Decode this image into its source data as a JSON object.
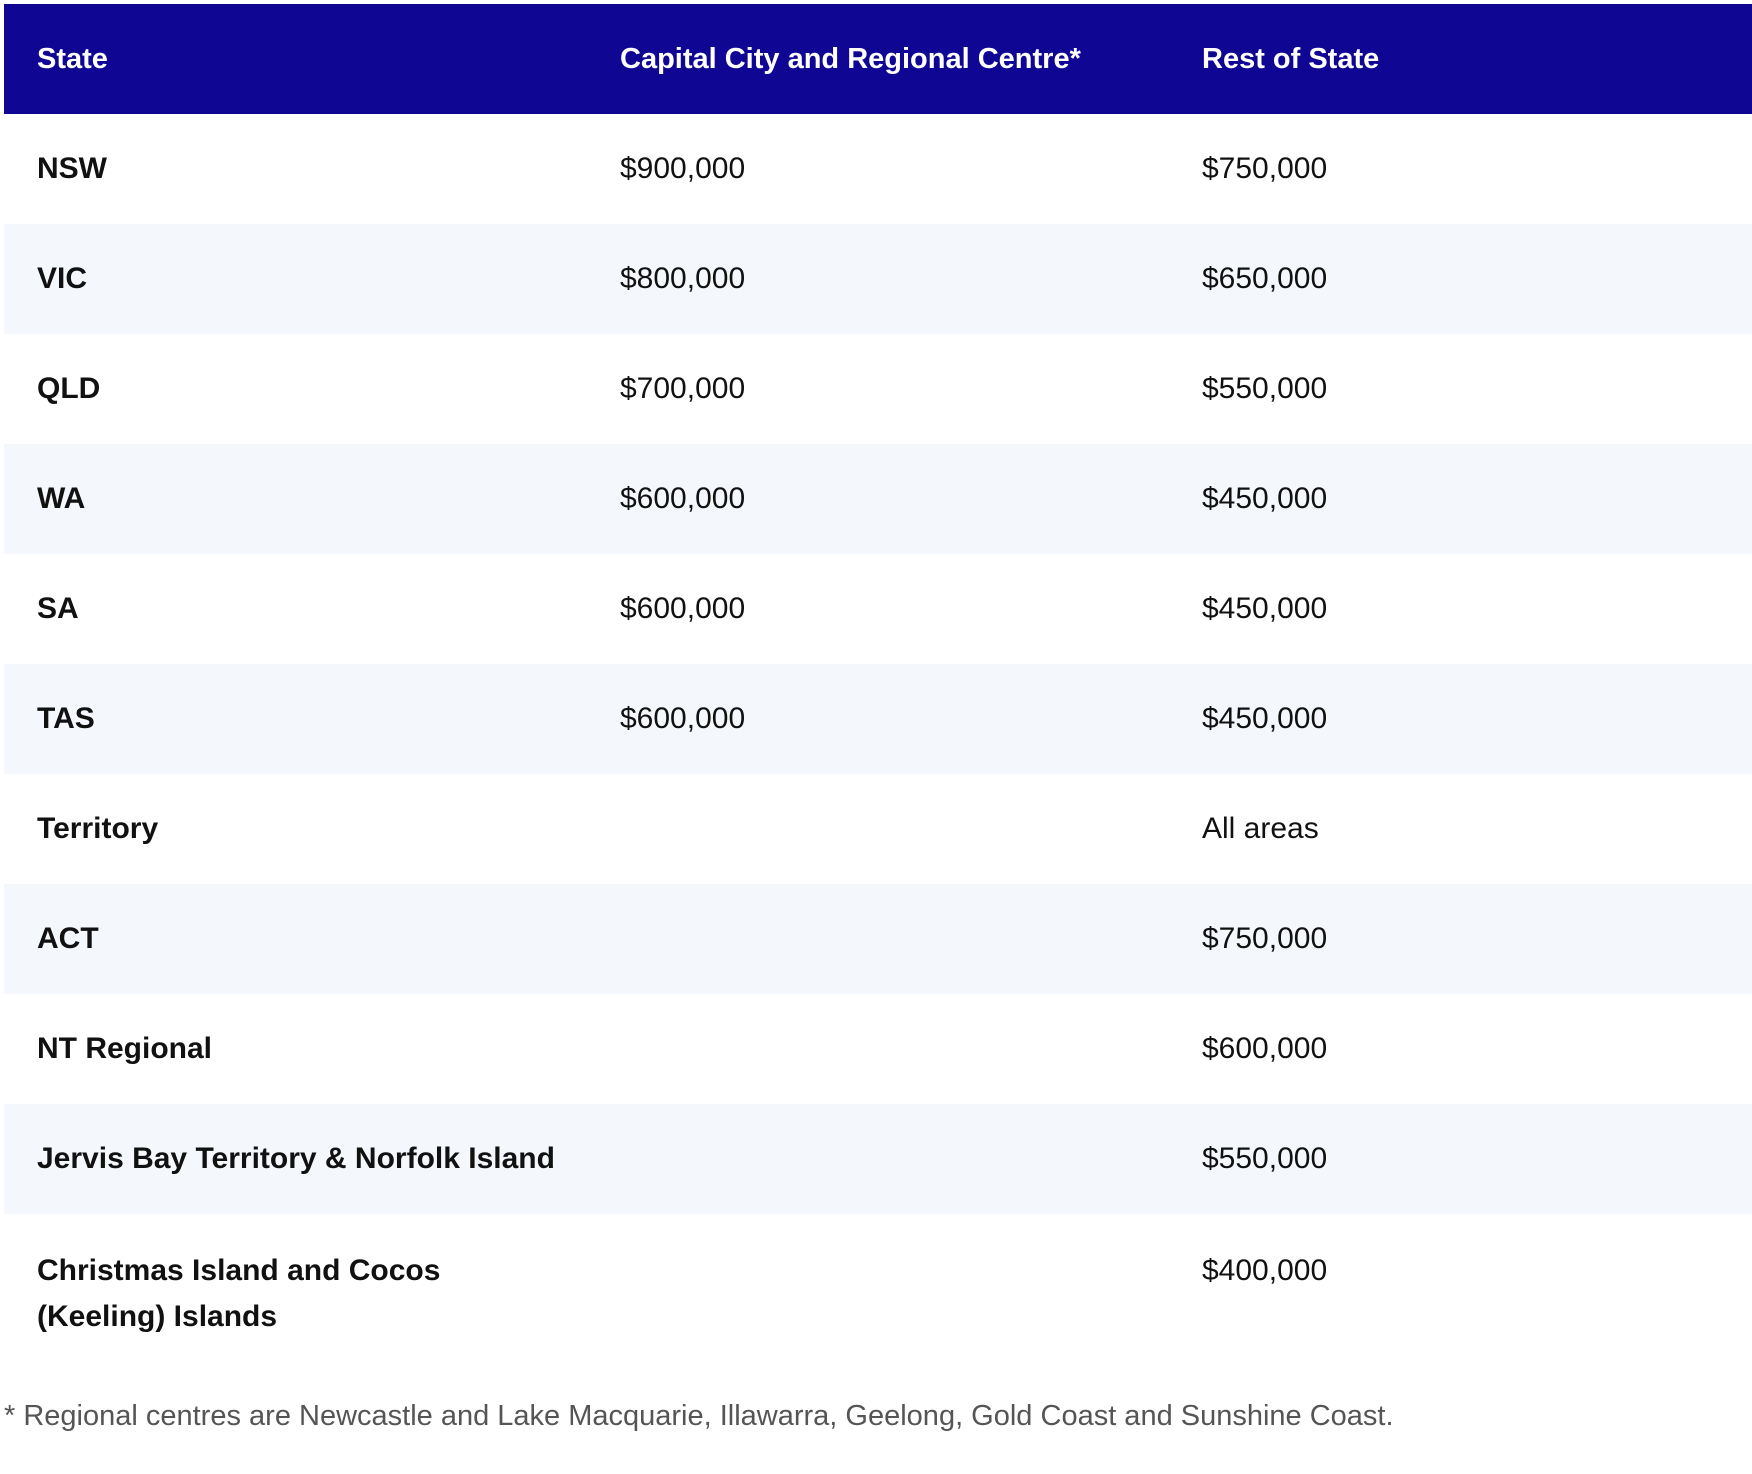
{
  "table": {
    "headers": [
      "State",
      "Capital City and Regional Centre*",
      "Rest of State"
    ],
    "rows": [
      {
        "state": "NSW",
        "capital": "$900,000",
        "rest": "$750,000"
      },
      {
        "state": "VIC",
        "capital": "$800,000",
        "rest": "$650,000"
      },
      {
        "state": "QLD",
        "capital": "$700,000",
        "rest": "$550,000"
      },
      {
        "state": "WA",
        "capital": "$600,000",
        "rest": "$450,000"
      },
      {
        "state": "SA",
        "capital": "$600,000",
        "rest": "$450,000"
      },
      {
        "state": "TAS",
        "capital": "$600,000",
        "rest": "$450,000"
      },
      {
        "state": "Territory",
        "capital": "",
        "rest": "All areas"
      },
      {
        "state": "ACT",
        "capital": "",
        "rest": "$750,000"
      },
      {
        "state": "NT Regional",
        "capital": "",
        "rest": "$600,000"
      },
      {
        "state": "Jervis Bay Territory & Norfolk Island",
        "capital": "",
        "rest": "$550,000"
      },
      {
        "state": "Christmas Island and Cocos (Keeling) Islands",
        "capital": "",
        "rest": "$400,000"
      }
    ]
  },
  "footnote": "* Regional centres are Newcastle and Lake Macquarie, Illawarra, Geelong, Gold Coast and Sunshine Coast."
}
